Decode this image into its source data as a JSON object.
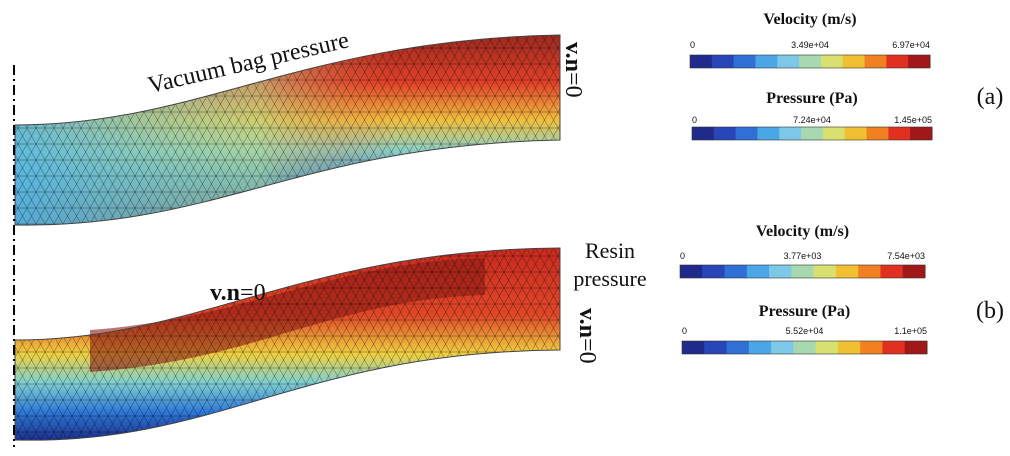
{
  "panel_a": {
    "annotation": "Vacuum bag pressure",
    "boundary": {
      "bold": "v.n",
      "rest": "=0"
    },
    "velocity": {
      "title": "Velocity (m/s)",
      "ticks": [
        "0",
        "3.49e+04",
        "6.97e+04"
      ]
    },
    "pressure": {
      "title": "Pressure (Pa)",
      "ticks": [
        "0",
        "7.24e+04",
        "1.45e+05"
      ]
    },
    "tag": "(a)"
  },
  "panel_b": {
    "annotation": [
      "Resin",
      "pressure"
    ],
    "boundary_top": {
      "bold": "v.n",
      "rest": "=0"
    },
    "boundary_right": {
      "bold": "v.n",
      "rest": "=0"
    },
    "velocity": {
      "title": "Velocity (m/s)",
      "ticks": [
        "0",
        "3.77e+03",
        "7.54e+03"
      ]
    },
    "pressure": {
      "title": "Pressure (Pa)",
      "ticks": [
        "0",
        "5.52e+04",
        "1.1e+05"
      ]
    },
    "tag": "(b)"
  }
}
